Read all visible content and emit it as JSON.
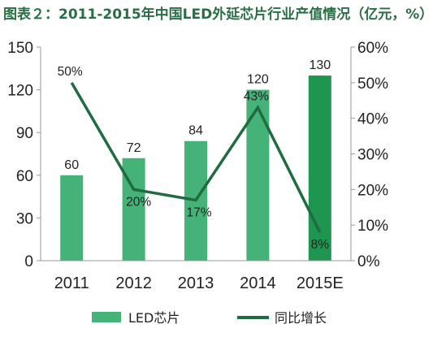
{
  "chart_data": {
    "type": "bar",
    "title": "图表２：2011-2015年中国LED外延芯片行业产值情况（亿元，%）",
    "categories": [
      "2011",
      "2012",
      "2013",
      "2014",
      "2015E"
    ],
    "series": [
      {
        "name": "LED芯片",
        "type": "bar",
        "axis": "left",
        "values": [
          60,
          72,
          84,
          120,
          130
        ],
        "labels": [
          "60",
          "72",
          "84",
          "120",
          "130"
        ]
      },
      {
        "name": "同比增长",
        "type": "line",
        "axis": "right",
        "values": [
          50,
          20,
          17,
          43,
          8
        ],
        "labels": [
          "50%",
          "20%",
          "17%",
          "43%",
          "8%"
        ]
      }
    ],
    "y_left": {
      "min": 0,
      "max": 150,
      "ticks": [
        "0",
        "30",
        "60",
        "90",
        "120",
        "150"
      ]
    },
    "y_right": {
      "min": 0,
      "max": 60,
      "ticks": [
        "0%",
        "10%",
        "20%",
        "30%",
        "40%",
        "50%",
        "60%"
      ]
    },
    "grid": false,
    "legend_position": "bottom",
    "colors": {
      "bar": "#45b278",
      "bar_last": "#1e9650",
      "line": "#1f6b42",
      "title": "#2a6e46"
    }
  }
}
